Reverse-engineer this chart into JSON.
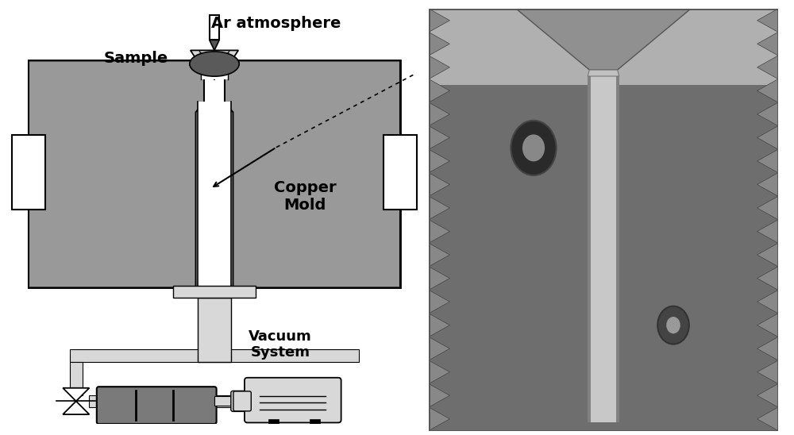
{
  "bg_color": "#ffffff",
  "diagram_label_ar": "Ar atmosphere",
  "diagram_label_sample": "Sample",
  "diagram_label_copper": "Copper\nMold",
  "diagram_label_vacuum": "Vacuum\nSystem",
  "mold_gray": "#999999",
  "light_gray": "#cccccc",
  "lighter_gray": "#d8d8d8",
  "dark_sample": "#666666",
  "pump_dark": "#777777",
  "font_size_large": 13,
  "font_size_medium": 11
}
